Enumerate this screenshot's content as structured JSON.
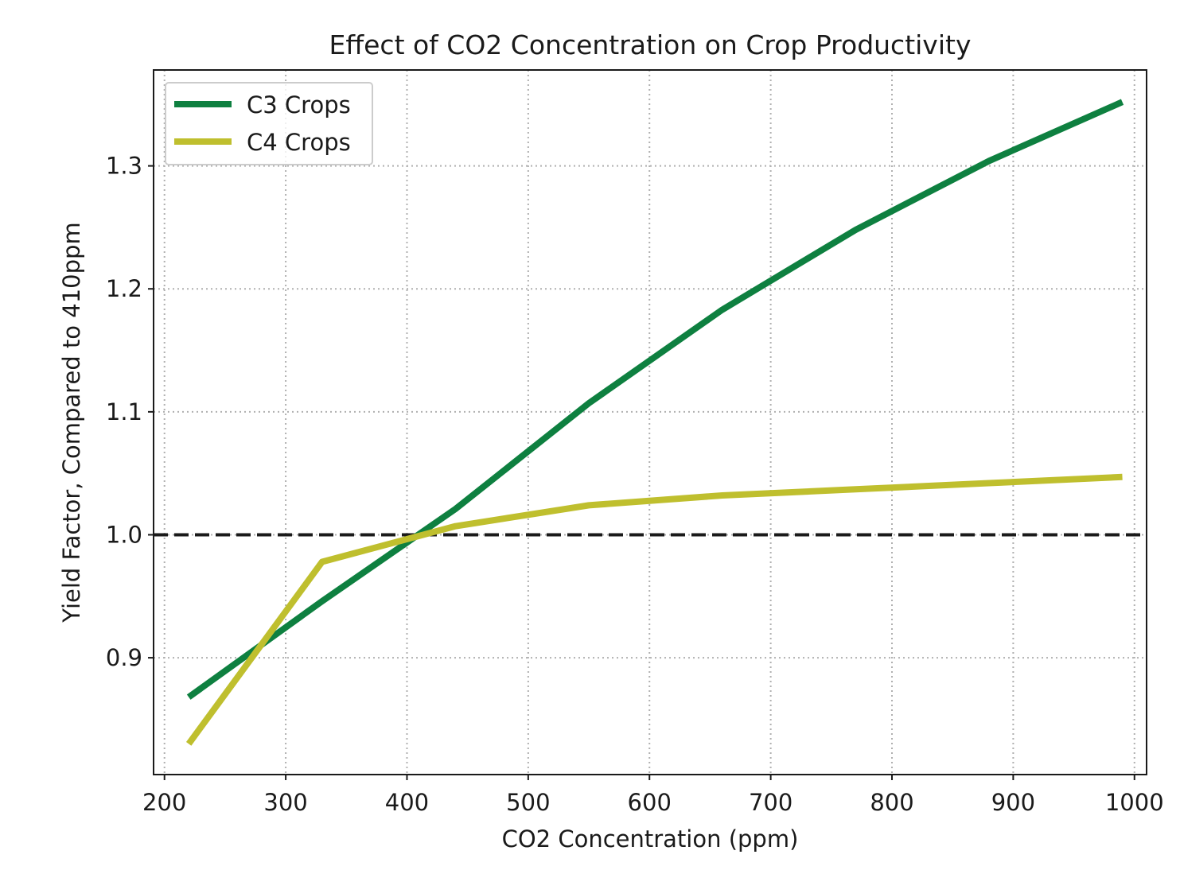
{
  "chart_data": {
    "type": "line",
    "title": "Effect of CO2 Concentration on Crop Productivity",
    "xlabel": "CO2 Concentration (ppm)",
    "ylabel": "Yield Factor, Compared to 410ppm",
    "xlim": [
      191,
      1010
    ],
    "ylim": [
      0.805,
      1.378
    ],
    "xticks": [
      200,
      300,
      400,
      500,
      600,
      700,
      800,
      900,
      1000
    ],
    "xtick_labels": [
      "200",
      "300",
      "400",
      "500",
      "600",
      "700",
      "800",
      "900",
      "1000"
    ],
    "yticks": [
      0.9,
      1.0,
      1.1,
      1.2,
      1.3
    ],
    "ytick_labels": [
      "0.9",
      "1.0",
      "1.1",
      "1.2",
      "1.3"
    ],
    "grid": true,
    "legend_position": "top-left",
    "reference_line": {
      "y": 1.0,
      "style": "dashed",
      "color": "#1a1a1a"
    },
    "x": [
      220,
      330,
      440,
      550,
      660,
      770,
      880,
      990
    ],
    "series": [
      {
        "name": "C3 Crops",
        "color": "#0e8040",
        "values": [
          0.868,
          0.946,
          1.021,
          1.107,
          1.183,
          1.248,
          1.304,
          1.352
        ]
      },
      {
        "name": "C4 Crops",
        "color": "#bfbf2e",
        "values": [
          0.83,
          0.978,
          1.007,
          1.024,
          1.032,
          1.037,
          1.042,
          1.047
        ]
      }
    ]
  }
}
